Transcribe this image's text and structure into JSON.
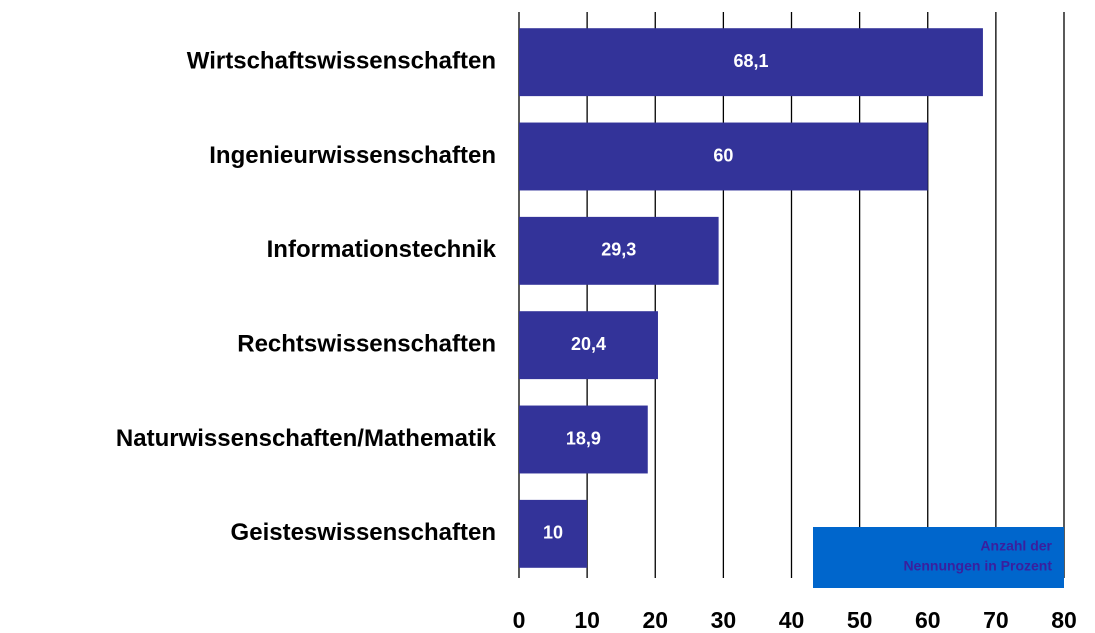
{
  "chart_data": {
    "type": "bar",
    "orientation": "horizontal",
    "categories": [
      "Wirtschaftswissenschaften",
      "Ingenieurwissenschaften",
      "Informationstechnik",
      "Rechtswissenschaften",
      "Naturwissenschaften/Mathematik",
      "Geisteswissenschaften"
    ],
    "values": [
      68.1,
      60,
      29.3,
      20.4,
      18.9,
      10
    ],
    "value_labels": [
      "68,1",
      "60",
      "29,3",
      "20,4",
      "18,9",
      "10"
    ],
    "color": "#333399",
    "xlim": [
      0,
      80
    ],
    "xticks": [
      0,
      10,
      20,
      30,
      40,
      50,
      60,
      70,
      80
    ],
    "grid": true,
    "annotation": [
      "Anzahl der",
      "Nennungen in Prozent"
    ]
  }
}
